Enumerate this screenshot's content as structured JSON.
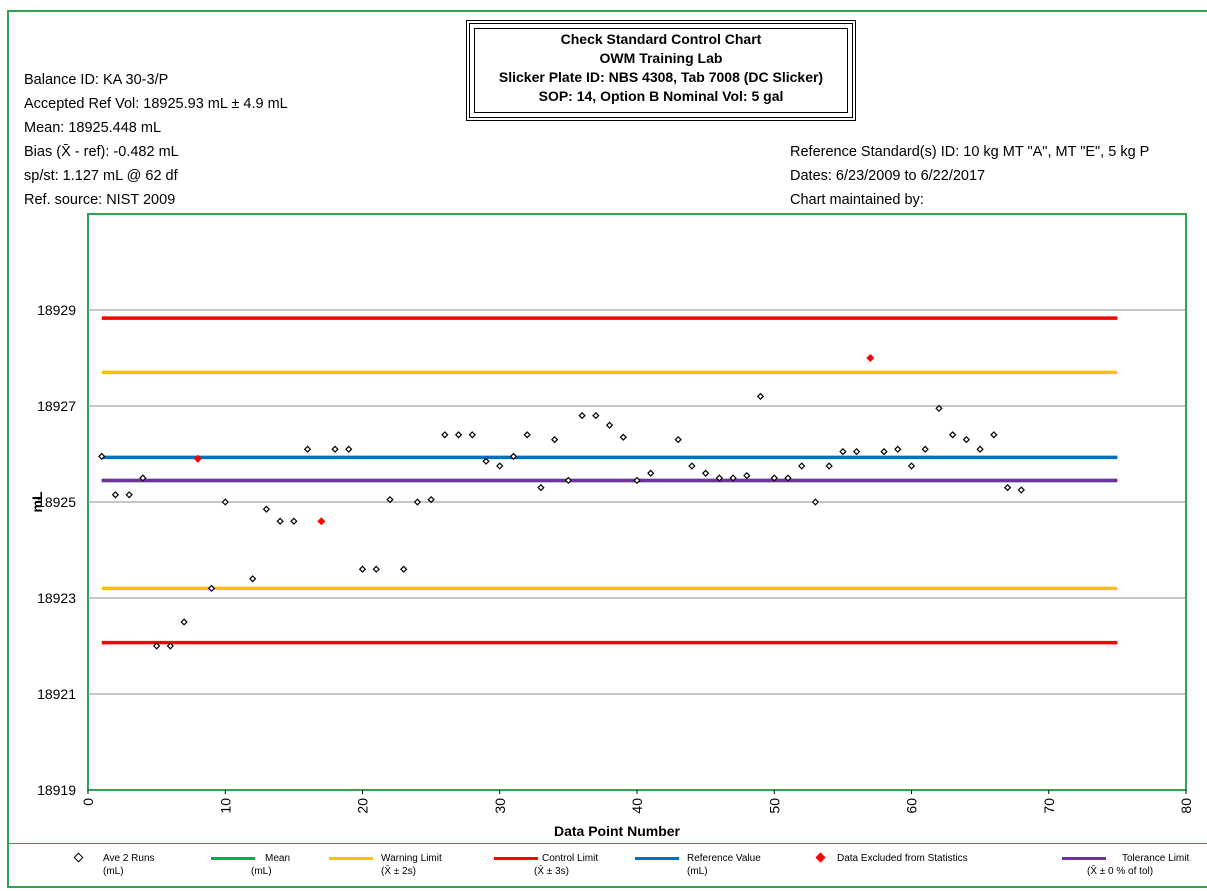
{
  "title_box": {
    "line1": "Check Standard Control Chart",
    "line2": "OWM Training Lab",
    "line3": "Slicker Plate ID:   NBS 4308, Tab 7008 (DC Slicker)",
    "line4": "SOP:  14, Option B     Nominal Vol:  5 gal"
  },
  "info_left": [
    "Balance ID:  KA 30-3/P",
    "Accepted Ref Vol:  18925.93 mL ± 4.9 mL",
    "Mean:  18925.448 mL",
    "Bias (X̄ - ref):  -0.482  mL",
    "sp/st:  1.127 mL @ 62 df",
    "Ref. source: NIST 2009"
  ],
  "info_right": [
    "Reference Standard(s) ID: 10 kg MT \"A\", MT \"E\", 5 kg P",
    "Dates:  6/23/2009 to 6/22/2017",
    "Chart maintained by:"
  ],
  "legend": [
    {
      "label": "Ave 2 Runs",
      "sub": "(mL)",
      "color": "#000000",
      "kind": "diamond-open"
    },
    {
      "label": "Mean",
      "sub": "(mL)",
      "color": "#00b050",
      "kind": "line"
    },
    {
      "label": "Warning Limit",
      "sub": "(X̄ ± 2s)",
      "color": "#ffc000",
      "kind": "line"
    },
    {
      "label": "Control Limit",
      "sub": "(X̄ ± 3s)",
      "color": "#ff0000",
      "kind": "line"
    },
    {
      "label": "Reference Value",
      "sub": "(mL)",
      "color": "#0070c0",
      "kind": "line"
    },
    {
      "label": "Data Excluded from Statistics",
      "sub": "",
      "color": "#ff0000",
      "kind": "diamond-filled"
    },
    {
      "label": "Tolerance Limit",
      "sub": "(X̄ ± 0 % of tol)",
      "color": "#7030a0",
      "kind": "line"
    }
  ],
  "chart_data": {
    "type": "scatter",
    "xlabel": "Data Point Number",
    "ylabel": "mL",
    "xlim": [
      0,
      80
    ],
    "ylim": [
      18919,
      18931
    ],
    "xticks": [
      0,
      10,
      20,
      30,
      40,
      50,
      60,
      70,
      80
    ],
    "yticks": [
      18919,
      18921,
      18923,
      18925,
      18927,
      18929
    ],
    "grid": true,
    "legend_position": "bottom",
    "reference_lines": [
      {
        "name": "Control Limit",
        "y": 18928.83,
        "x_range": [
          1,
          75
        ],
        "color": "#ff0000"
      },
      {
        "name": "Warning Limit",
        "y": 18927.7,
        "x_range": [
          1,
          75
        ],
        "color": "#ffc000"
      },
      {
        "name": "Reference Value",
        "y": 18925.93,
        "x_range": [
          1,
          75
        ],
        "color": "#0070c0"
      },
      {
        "name": "Mean",
        "y": 18925.448,
        "x_range": [
          1,
          75
        ],
        "color": "#00b050"
      },
      {
        "name": "Tolerance Limit",
        "y": 18925.448,
        "x_range": [
          1,
          75
        ],
        "color": "#7030a0"
      },
      {
        "name": "Warning Limit",
        "y": 18923.2,
        "x_range": [
          1,
          75
        ],
        "color": "#ffc000"
      },
      {
        "name": "Control Limit",
        "y": 18922.07,
        "x_range": [
          1,
          75
        ],
        "color": "#ff0000"
      }
    ],
    "series": [
      {
        "name": "Ave 2 Runs",
        "marker": "diamond-open",
        "color": "#000000",
        "points": [
          [
            1,
            18925.95
          ],
          [
            2,
            18925.15
          ],
          [
            3,
            18925.15
          ],
          [
            4,
            18925.5
          ],
          [
            5,
            18922.0
          ],
          [
            6,
            18922.0
          ],
          [
            7,
            18922.5
          ],
          [
            9,
            18923.2
          ],
          [
            10,
            18925.0
          ],
          [
            12,
            18923.4
          ],
          [
            13,
            18924.85
          ],
          [
            14,
            18924.6
          ],
          [
            15,
            18924.6
          ],
          [
            16,
            18926.1
          ],
          [
            18,
            18926.1
          ],
          [
            19,
            18926.1
          ],
          [
            20,
            18923.6
          ],
          [
            21,
            18923.6
          ],
          [
            22,
            18925.05
          ],
          [
            23,
            18923.6
          ],
          [
            24,
            18925.0
          ],
          [
            25,
            18925.05
          ],
          [
            26,
            18926.4
          ],
          [
            27,
            18926.4
          ],
          [
            28,
            18926.4
          ],
          [
            29,
            18925.85
          ],
          [
            30,
            18925.75
          ],
          [
            31,
            18925.95
          ],
          [
            32,
            18926.4
          ],
          [
            33,
            18925.3
          ],
          [
            34,
            18926.3
          ],
          [
            35,
            18925.45
          ],
          [
            36,
            18926.8
          ],
          [
            37,
            18926.8
          ],
          [
            38,
            18926.6
          ],
          [
            39,
            18926.35
          ],
          [
            40,
            18925.45
          ],
          [
            41,
            18925.6
          ],
          [
            43,
            18926.3
          ],
          [
            44,
            18925.75
          ],
          [
            45,
            18925.6
          ],
          [
            46,
            18925.5
          ],
          [
            47,
            18925.5
          ],
          [
            48,
            18925.55
          ],
          [
            49,
            18927.2
          ],
          [
            50,
            18925.5
          ],
          [
            51,
            18925.5
          ],
          [
            52,
            18925.75
          ],
          [
            53,
            18925.0
          ],
          [
            54,
            18925.75
          ],
          [
            55,
            18926.05
          ],
          [
            56,
            18926.05
          ],
          [
            58,
            18926.05
          ],
          [
            59,
            18926.1
          ],
          [
            60,
            18925.75
          ],
          [
            61,
            18926.1
          ],
          [
            62,
            18926.95
          ],
          [
            63,
            18926.4
          ],
          [
            64,
            18926.3
          ],
          [
            65,
            18926.1
          ],
          [
            66,
            18926.4
          ],
          [
            67,
            18925.3
          ],
          [
            68,
            18925.25
          ]
        ]
      },
      {
        "name": "Data Excluded from Statistics",
        "marker": "diamond-filled",
        "color": "#ff0000",
        "points": [
          [
            8,
            18925.9
          ],
          [
            17,
            18924.6
          ],
          [
            57,
            18928.0
          ]
        ]
      }
    ]
  }
}
